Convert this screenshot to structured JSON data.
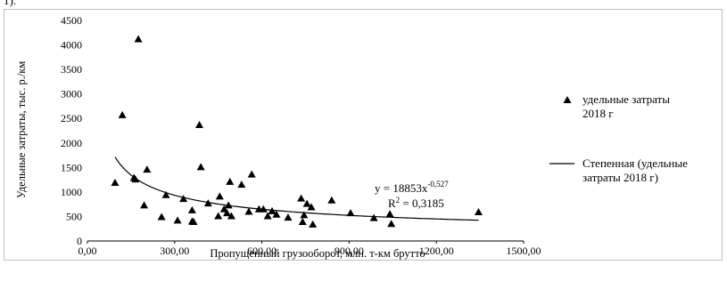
{
  "fragment_text": "1).",
  "chart_data": {
    "type": "scatter",
    "xlabel": "Пропущенный грузооборот, млн. т-км брутто",
    "ylabel": "Удельные затраты, тыс. р./км",
    "xlim": [
      0,
      1500
    ],
    "ylim": [
      0,
      4500
    ],
    "x_ticks": [
      "0,00",
      "300,00",
      "600,00",
      "900,00",
      "1200,00",
      "1500,00"
    ],
    "y_ticks": [
      "0",
      "500",
      "1000",
      "1500",
      "2000",
      "2500",
      "3000",
      "3500",
      "4000",
      "4500"
    ],
    "grid": false,
    "legend_position": "right",
    "series": [
      {
        "name": "удельные затраты 2018 г",
        "marker": "triangle",
        "color": "#000000",
        "points": [
          [
            95,
            1180
          ],
          [
            120,
            2560
          ],
          [
            160,
            1280
          ],
          [
            165,
            1250
          ],
          [
            175,
            4110
          ],
          [
            195,
            720
          ],
          [
            205,
            1450
          ],
          [
            255,
            480
          ],
          [
            270,
            930
          ],
          [
            310,
            410
          ],
          [
            330,
            850
          ],
          [
            360,
            390
          ],
          [
            360,
            620
          ],
          [
            365,
            380
          ],
          [
            385,
            2360
          ],
          [
            390,
            1500
          ],
          [
            415,
            760
          ],
          [
            450,
            500
          ],
          [
            455,
            900
          ],
          [
            470,
            640
          ],
          [
            480,
            560
          ],
          [
            485,
            720
          ],
          [
            490,
            1200
          ],
          [
            495,
            500
          ],
          [
            530,
            1140
          ],
          [
            555,
            590
          ],
          [
            565,
            1350
          ],
          [
            590,
            640
          ],
          [
            605,
            640
          ],
          [
            620,
            500
          ],
          [
            635,
            600
          ],
          [
            650,
            530
          ],
          [
            690,
            470
          ],
          [
            735,
            860
          ],
          [
            740,
            380
          ],
          [
            745,
            520
          ],
          [
            755,
            750
          ],
          [
            770,
            680
          ],
          [
            775,
            330
          ],
          [
            840,
            820
          ],
          [
            905,
            560
          ],
          [
            985,
            460
          ],
          [
            1040,
            540
          ],
          [
            1045,
            340
          ],
          [
            1345,
            580
          ]
        ]
      },
      {
        "name": "Степенная (удельные затраты 2018 г)",
        "type": "power-trendline",
        "color": "#000000",
        "coefficient": 18853,
        "exponent": -0.527,
        "x_range": [
          95,
          1345
        ]
      }
    ],
    "annotations": {
      "equation_prefix": "y = 18853x",
      "equation_exponent": "-0,527",
      "r2_prefix": "R",
      "r2_sup": "2",
      "r2_suffix": " = 0,3185"
    },
    "legend": {
      "scatter_line1": "удельные затраты",
      "scatter_line2": "2018 г",
      "trend_line1": "Степенная (удельные",
      "trend_line2": "затраты 2018 г)"
    }
  }
}
